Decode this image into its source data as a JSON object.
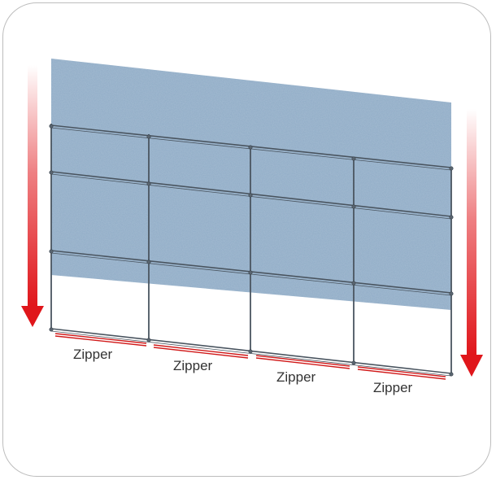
{
  "diagram": {
    "zipper_labels": [
      "Zipper",
      "Zipper",
      "Zipper",
      "Zipper"
    ],
    "colors": {
      "curtain": "#8fabc6",
      "frame": "#4a5560",
      "arrow": "#e0161b",
      "zipper_line": "#d11a1a",
      "card_border": "#bdbdbd"
    },
    "icons": {
      "left_arrow": "down-arrow-icon",
      "right_arrow": "down-arrow-icon"
    }
  }
}
